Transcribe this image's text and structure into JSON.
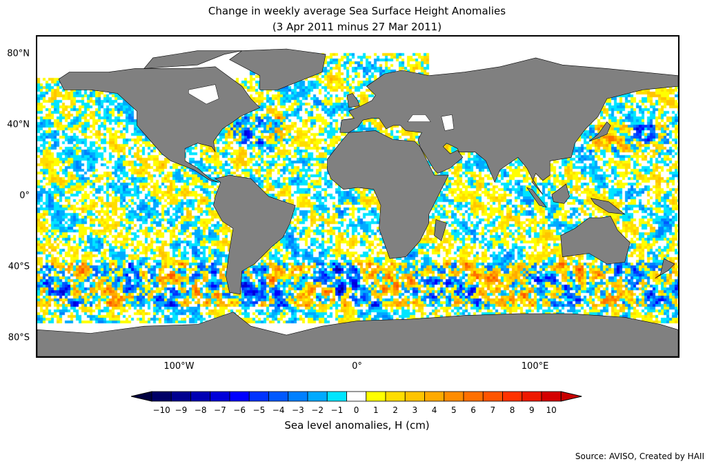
{
  "title": {
    "line1": "Change in weekly average Sea Surface Height Anomalies",
    "line2": "(3 Apr 2011 minus 27 Mar 2011)"
  },
  "map": {
    "projection": "equirectangular",
    "lon_range": [
      -180,
      180
    ],
    "lat_range": [
      -90,
      90
    ],
    "land_color": "#808080",
    "no_data_color": "#ffffff",
    "y_ticks": [
      {
        "label": "80°N",
        "lat": 80
      },
      {
        "label": "40°N",
        "lat": 40
      },
      {
        "label": "0°",
        "lat": 0
      },
      {
        "label": "40°S",
        "lat": -40
      },
      {
        "label": "80°S",
        "lat": -80
      }
    ],
    "x_ticks": [
      {
        "label": "100°W",
        "lon": -100
      },
      {
        "label": "0°",
        "lon": 0
      },
      {
        "label": "100°E",
        "lon": 100
      }
    ]
  },
  "colorbar": {
    "label": "Sea level anomalies, H (cm)",
    "ticks": [
      "−10",
      "−9",
      "−8",
      "−7",
      "−6",
      "−5",
      "−4",
      "−3",
      "−2",
      "−1",
      "0",
      "1",
      "2",
      "3",
      "4",
      "5",
      "6",
      "7",
      "8",
      "9",
      "10"
    ],
    "colors": [
      "#000066",
      "#00008f",
      "#0000b3",
      "#0000d9",
      "#0000ff",
      "#0033ff",
      "#0059ff",
      "#0080ff",
      "#00aaff",
      "#00e5ff",
      "#ffffff",
      "#ffff00",
      "#ffdd00",
      "#ffc400",
      "#ffaa00",
      "#ff8c00",
      "#ff7000",
      "#ff5500",
      "#ff3300",
      "#ee1a00",
      "#d40000"
    ],
    "under_color": "#000040",
    "over_color": "#c80000"
  },
  "source": "Source: AVISO, Created by HAII"
}
